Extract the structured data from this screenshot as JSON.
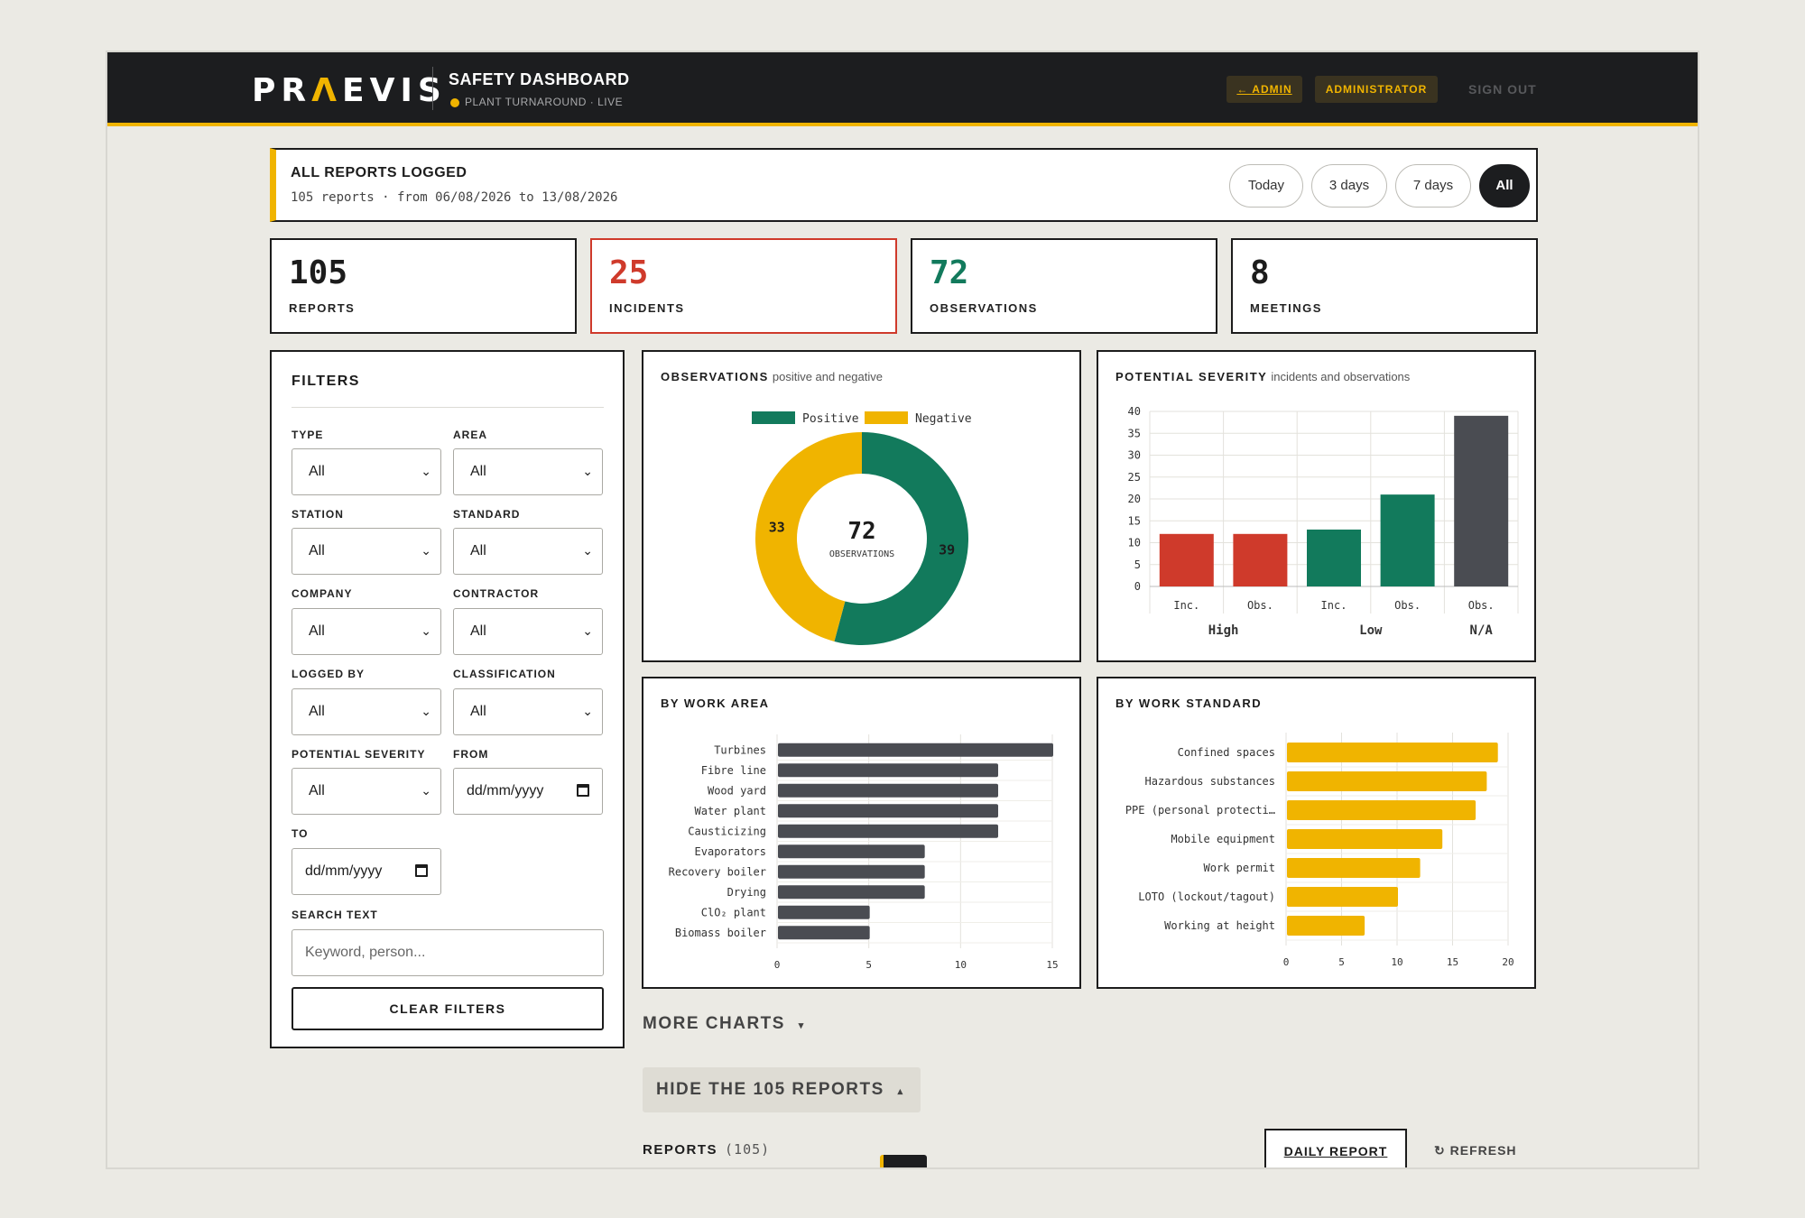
{
  "header": {
    "logo_left": "PR",
    "logo_mark": "Λ",
    "logo_right": "EVIS",
    "title": "SAFETY DASHBOARD",
    "subtitle": "PLANT TURNAROUND · LIVE",
    "admin_link": "← ADMIN",
    "role_badge": "ADMINISTRATOR",
    "sign_out": "SIGN OUT"
  },
  "range": {
    "title": "ALL REPORTS LOGGED",
    "summary": "105 reports · from 06/08/2026 to 13/08/2026",
    "options": [
      "Today",
      "3 days",
      "7 days",
      "All"
    ],
    "selected": "All"
  },
  "stats": [
    {
      "value": "105",
      "label": "REPORTS",
      "color": "#1c1c1c"
    },
    {
      "value": "25",
      "label": "INCIDENTS",
      "color": "#cf3a2b"
    },
    {
      "value": "72",
      "label": "OBSERVATIONS",
      "color": "#127a5c"
    },
    {
      "value": "8",
      "label": "MEETINGS",
      "color": "#1c1c1c"
    }
  ],
  "filters": {
    "title": "FILTERS",
    "type": {
      "label": "TYPE",
      "value": "All"
    },
    "area": {
      "label": "AREA",
      "value": "All"
    },
    "station": {
      "label": "STATION",
      "value": "All"
    },
    "standard": {
      "label": "STANDARD",
      "value": "All"
    },
    "company": {
      "label": "COMPANY",
      "value": "All"
    },
    "contractor": {
      "label": "CONTRACTOR",
      "value": "All"
    },
    "logged_by": {
      "label": "LOGGED BY",
      "value": "All"
    },
    "classification": {
      "label": "CLASSIFICATION",
      "value": "All"
    },
    "potential_severity": {
      "label": "POTENTIAL SEVERITY",
      "value": "All"
    },
    "from": {
      "label": "FROM",
      "value": "dd/mm/yyyy"
    },
    "to": {
      "label": "TO",
      "value": "dd/mm/yyyy"
    },
    "search": {
      "label": "SEARCH TEXT",
      "placeholder": "Keyword, person..."
    },
    "clear_label": "CLEAR FILTERS"
  },
  "panels": {
    "observations": {
      "title": "OBSERVATIONS",
      "subtitle": "positive and negative"
    },
    "severity": {
      "title": "POTENTIAL SEVERITY",
      "subtitle": "incidents and observations"
    },
    "work_area": {
      "title": "BY WORK AREA"
    },
    "work_standard": {
      "title": "BY WORK STANDARD"
    }
  },
  "chart_data": [
    {
      "type": "pie",
      "categories": [
        "Positive",
        "Negative"
      ],
      "values": [
        39,
        33
      ],
      "colors": [
        "#127a5c",
        "#f0b400"
      ],
      "center_value": "72",
      "center_label": "OBSERVATIONS",
      "legend": "top"
    },
    {
      "type": "bar",
      "categories": [
        "Inc.",
        "Obs.",
        "Inc.",
        "Obs.",
        "Obs."
      ],
      "groups": [
        "High",
        "Low",
        "N/A"
      ],
      "group_of": [
        "High",
        "High",
        "Low",
        "Low",
        "N/A"
      ],
      "values": [
        12,
        12,
        13,
        21,
        39
      ],
      "colors": [
        "#cf3a2b",
        "#cf3a2b",
        "#127a5c",
        "#127a5c",
        "#4a4c52"
      ],
      "ylim": [
        0,
        40
      ],
      "yticks": [
        0,
        5,
        10,
        15,
        20,
        25,
        30,
        35,
        40
      ],
      "grid": true
    },
    {
      "type": "bar",
      "orientation": "horizontal",
      "categories": [
        "Turbines",
        "Fibre line",
        "Wood yard",
        "Water plant",
        "Causticizing",
        "Evaporators",
        "Recovery boiler",
        "Drying",
        "ClO₂ plant",
        "Biomass boiler"
      ],
      "values": [
        15,
        12,
        12,
        12,
        12,
        8,
        8,
        8,
        5,
        5
      ],
      "color": "#4a4c52",
      "xlim": [
        0,
        15
      ],
      "xticks": [
        0,
        5,
        10,
        15
      ],
      "grid": true
    },
    {
      "type": "bar",
      "orientation": "horizontal",
      "categories": [
        "Confined spaces",
        "Hazardous substances",
        "PPE (personal protecti…",
        "Mobile equipment",
        "Work permit",
        "LOTO (lockout/tagout)",
        "Working at height"
      ],
      "values": [
        19,
        18,
        17,
        14,
        12,
        10,
        7
      ],
      "color": "#f0b400",
      "xlim": [
        0,
        20
      ],
      "xticks": [
        0,
        5,
        10,
        15,
        20
      ],
      "grid": true
    }
  ],
  "bottom": {
    "more_charts": "MORE CHARTS",
    "hide_reports": "HIDE THE 105 REPORTS",
    "reports_label": "REPORTS",
    "reports_count": "(105)",
    "daily_report": "DAILY REPORT",
    "refresh": "↻ REFRESH"
  }
}
